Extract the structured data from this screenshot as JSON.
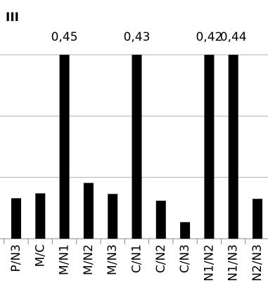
{
  "chart_data": {
    "type": "bar",
    "title": "III",
    "categories": [
      "P/N3",
      "M/C",
      "M/N1",
      "M/N2",
      "M/N3",
      "C/N1",
      "C/N2",
      "C/N3",
      "N1/N2",
      "N1/N3",
      "N2/N3"
    ],
    "values": [
      0.066,
      0.074,
      0.45,
      0.091,
      0.073,
      0.43,
      0.062,
      0.027,
      0.42,
      0.44,
      0.065
    ],
    "value_labels": [
      null,
      null,
      "0,45",
      null,
      null,
      "0,43",
      null,
      null,
      "0,42",
      "0,44",
      null
    ],
    "color": "#000000",
    "ylim": [
      0,
      0.3
    ],
    "yticks": [
      0,
      0.1,
      0.2,
      0.3
    ],
    "grid": true
  }
}
